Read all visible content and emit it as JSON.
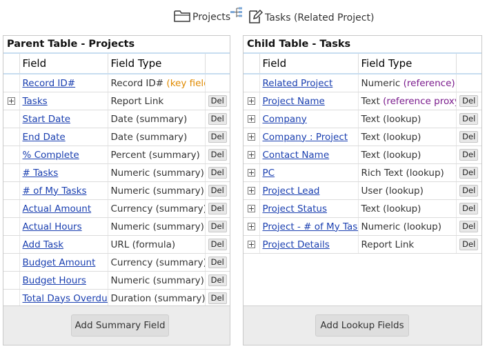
{
  "header": {
    "parent_label": "Projects",
    "child_label": "Tasks (Related Project)"
  },
  "parent": {
    "title": "Parent Table - Projects",
    "col_field": "Field",
    "col_type": "Field Type",
    "rows": [
      {
        "field": "Record ID#",
        "type": "Record ID#",
        "note": "(key field)",
        "expand": false,
        "del": false
      },
      {
        "field": "Tasks",
        "type": "Report Link",
        "note": "",
        "expand": true,
        "del": true
      },
      {
        "field": "Start Date",
        "type": "Date (summary)",
        "note": "",
        "expand": false,
        "del": true
      },
      {
        "field": "End Date",
        "type": "Date (summary)",
        "note": "",
        "expand": false,
        "del": true
      },
      {
        "field": "% Complete",
        "type": "Percent (summary)",
        "note": "",
        "expand": false,
        "del": true
      },
      {
        "field": "# Tasks",
        "type": "Numeric (summary)",
        "note": "",
        "expand": false,
        "del": true
      },
      {
        "field": "# of My Tasks",
        "type": "Numeric (summary)",
        "note": "",
        "expand": false,
        "del": true
      },
      {
        "field": "Actual Amount",
        "type": "Currency (summary)",
        "note": "",
        "expand": false,
        "del": true
      },
      {
        "field": "Actual Hours",
        "type": "Numeric (summary)",
        "note": "",
        "expand": false,
        "del": true
      },
      {
        "field": "Add Task",
        "type": "URL (formula)",
        "note": "",
        "expand": false,
        "del": true
      },
      {
        "field": "Budget Amount",
        "type": "Currency (summary)",
        "note": "",
        "expand": false,
        "del": true
      },
      {
        "field": "Budget Hours",
        "type": "Numeric (summary)",
        "note": "",
        "expand": false,
        "del": true
      },
      {
        "field": "Total Days Overdue",
        "type": "Duration (summary)",
        "note": "",
        "expand": false,
        "del": true
      }
    ],
    "del_label": "Del",
    "button": "Add Summary Field"
  },
  "child": {
    "title": "Child Table - Tasks",
    "col_field": "Field",
    "col_type": "Field Type",
    "rows": [
      {
        "field": "Related Project",
        "type": "Numeric",
        "note": "(reference)",
        "expand": false,
        "del": false
      },
      {
        "field": "Project Name",
        "type": "Text",
        "note": "(reference proxy)",
        "expand": true,
        "del": true
      },
      {
        "field": "Company",
        "type": "Text (lookup)",
        "note": "",
        "expand": true,
        "del": true
      },
      {
        "field": "Company : Project",
        "type": "Text (lookup)",
        "note": "",
        "expand": true,
        "del": true
      },
      {
        "field": "Contact Name",
        "type": "Text (lookup)",
        "note": "",
        "expand": true,
        "del": true
      },
      {
        "field": "PC",
        "type": "Rich Text (lookup)",
        "note": "",
        "expand": true,
        "del": true
      },
      {
        "field": "Project Lead",
        "type": "User (lookup)",
        "note": "",
        "expand": true,
        "del": true
      },
      {
        "field": "Project Status",
        "type": "Text (lookup)",
        "note": "",
        "expand": true,
        "del": true
      },
      {
        "field": "Project - # of My Tasks",
        "type": "Numeric (lookup)",
        "note": "",
        "expand": true,
        "del": true
      },
      {
        "field": "Project Details",
        "type": "Report Link",
        "note": "",
        "expand": true,
        "del": true
      }
    ],
    "del_label": "Del",
    "button": "Add Lookup Fields"
  },
  "colors": {
    "link": "#1a3fb0",
    "key_note": "#e08a00",
    "ref_note": "#7a1a8c",
    "header_rule": "#c7ddf0"
  }
}
